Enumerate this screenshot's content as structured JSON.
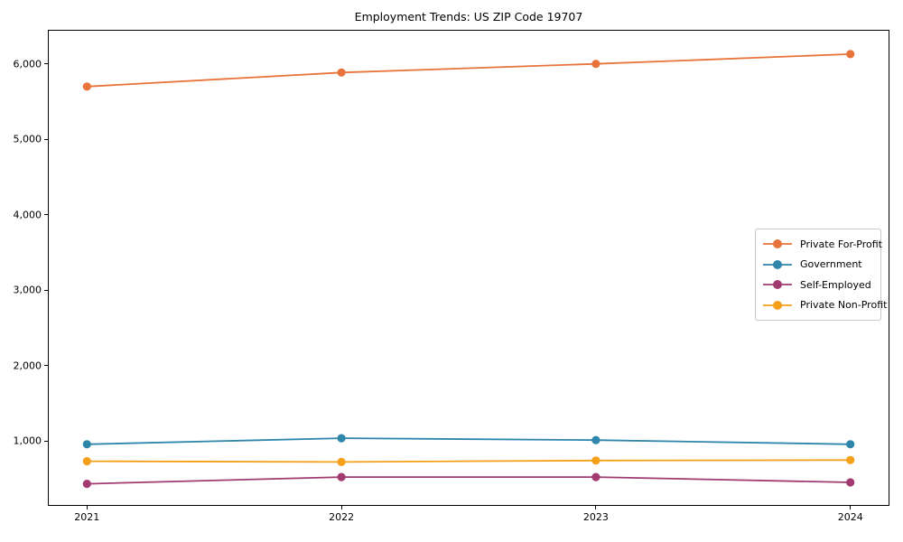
{
  "figure": {
    "title": "Employment Trends: US ZIP Code 19707"
  },
  "chart_data": {
    "type": "line",
    "title": "Employment Trends: US ZIP Code 19707",
    "xlabel": "",
    "ylabel": "",
    "categories": [
      "2021",
      "2022",
      "2023",
      "2024"
    ],
    "x": [
      2021,
      2022,
      2023,
      2024
    ],
    "series": [
      {
        "name": "Private For-Profit",
        "color": "#E8743B",
        "values": [
          5700,
          5885,
          6000,
          6130
        ]
      },
      {
        "name": "Government",
        "color": "#2E86AB",
        "values": [
          955,
          1035,
          1010,
          955
        ]
      },
      {
        "name": "Self-Employed",
        "color": "#A23B72",
        "values": [
          430,
          520,
          520,
          450
        ]
      },
      {
        "name": "Private Non-Profit",
        "color": "#F5A01B",
        "values": [
          730,
          720,
          740,
          745
        ]
      }
    ],
    "y_ticks": [
      {
        "value": 1000,
        "label": "1,000"
      },
      {
        "value": 2000,
        "label": "2,000"
      },
      {
        "value": 3000,
        "label": "3,000"
      },
      {
        "value": 4000,
        "label": "4,000"
      },
      {
        "value": 5000,
        "label": "5,000"
      },
      {
        "value": 6000,
        "label": "6,000"
      }
    ],
    "xlim": [
      2020.85,
      2024.15
    ],
    "ylim": [
      150,
      6440
    ],
    "grid": false,
    "legend_position": "center right",
    "background_color": "#ffffff",
    "frame_color": "#000000"
  }
}
